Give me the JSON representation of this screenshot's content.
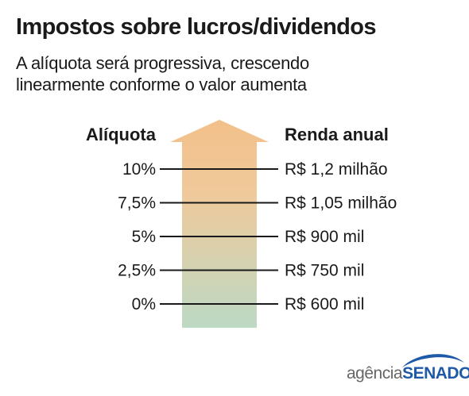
{
  "title": "Impostos sobre lucros/dividendos",
  "subtitle": "A alíquota será progressiva, crescendo linearmente conforme o valor aumenta",
  "left_header": "Alíquota",
  "right_header": "Renda anual",
  "rows": [
    {
      "rate": "10%",
      "income": "R$ 1,2 milhão"
    },
    {
      "rate": "7,5%",
      "income": "R$ 1,05 milhão"
    },
    {
      "rate": "5%",
      "income": "R$ 900 mil"
    },
    {
      "rate": "2,5%",
      "income": "R$ 750 mil"
    },
    {
      "rate": "0%",
      "income": "R$ 600 mil"
    }
  ],
  "arrow_colors": {
    "top": "#f2c08a",
    "bottom": "#bcd9c4"
  },
  "logo": {
    "part1": "agência",
    "part2": "SENADO"
  }
}
